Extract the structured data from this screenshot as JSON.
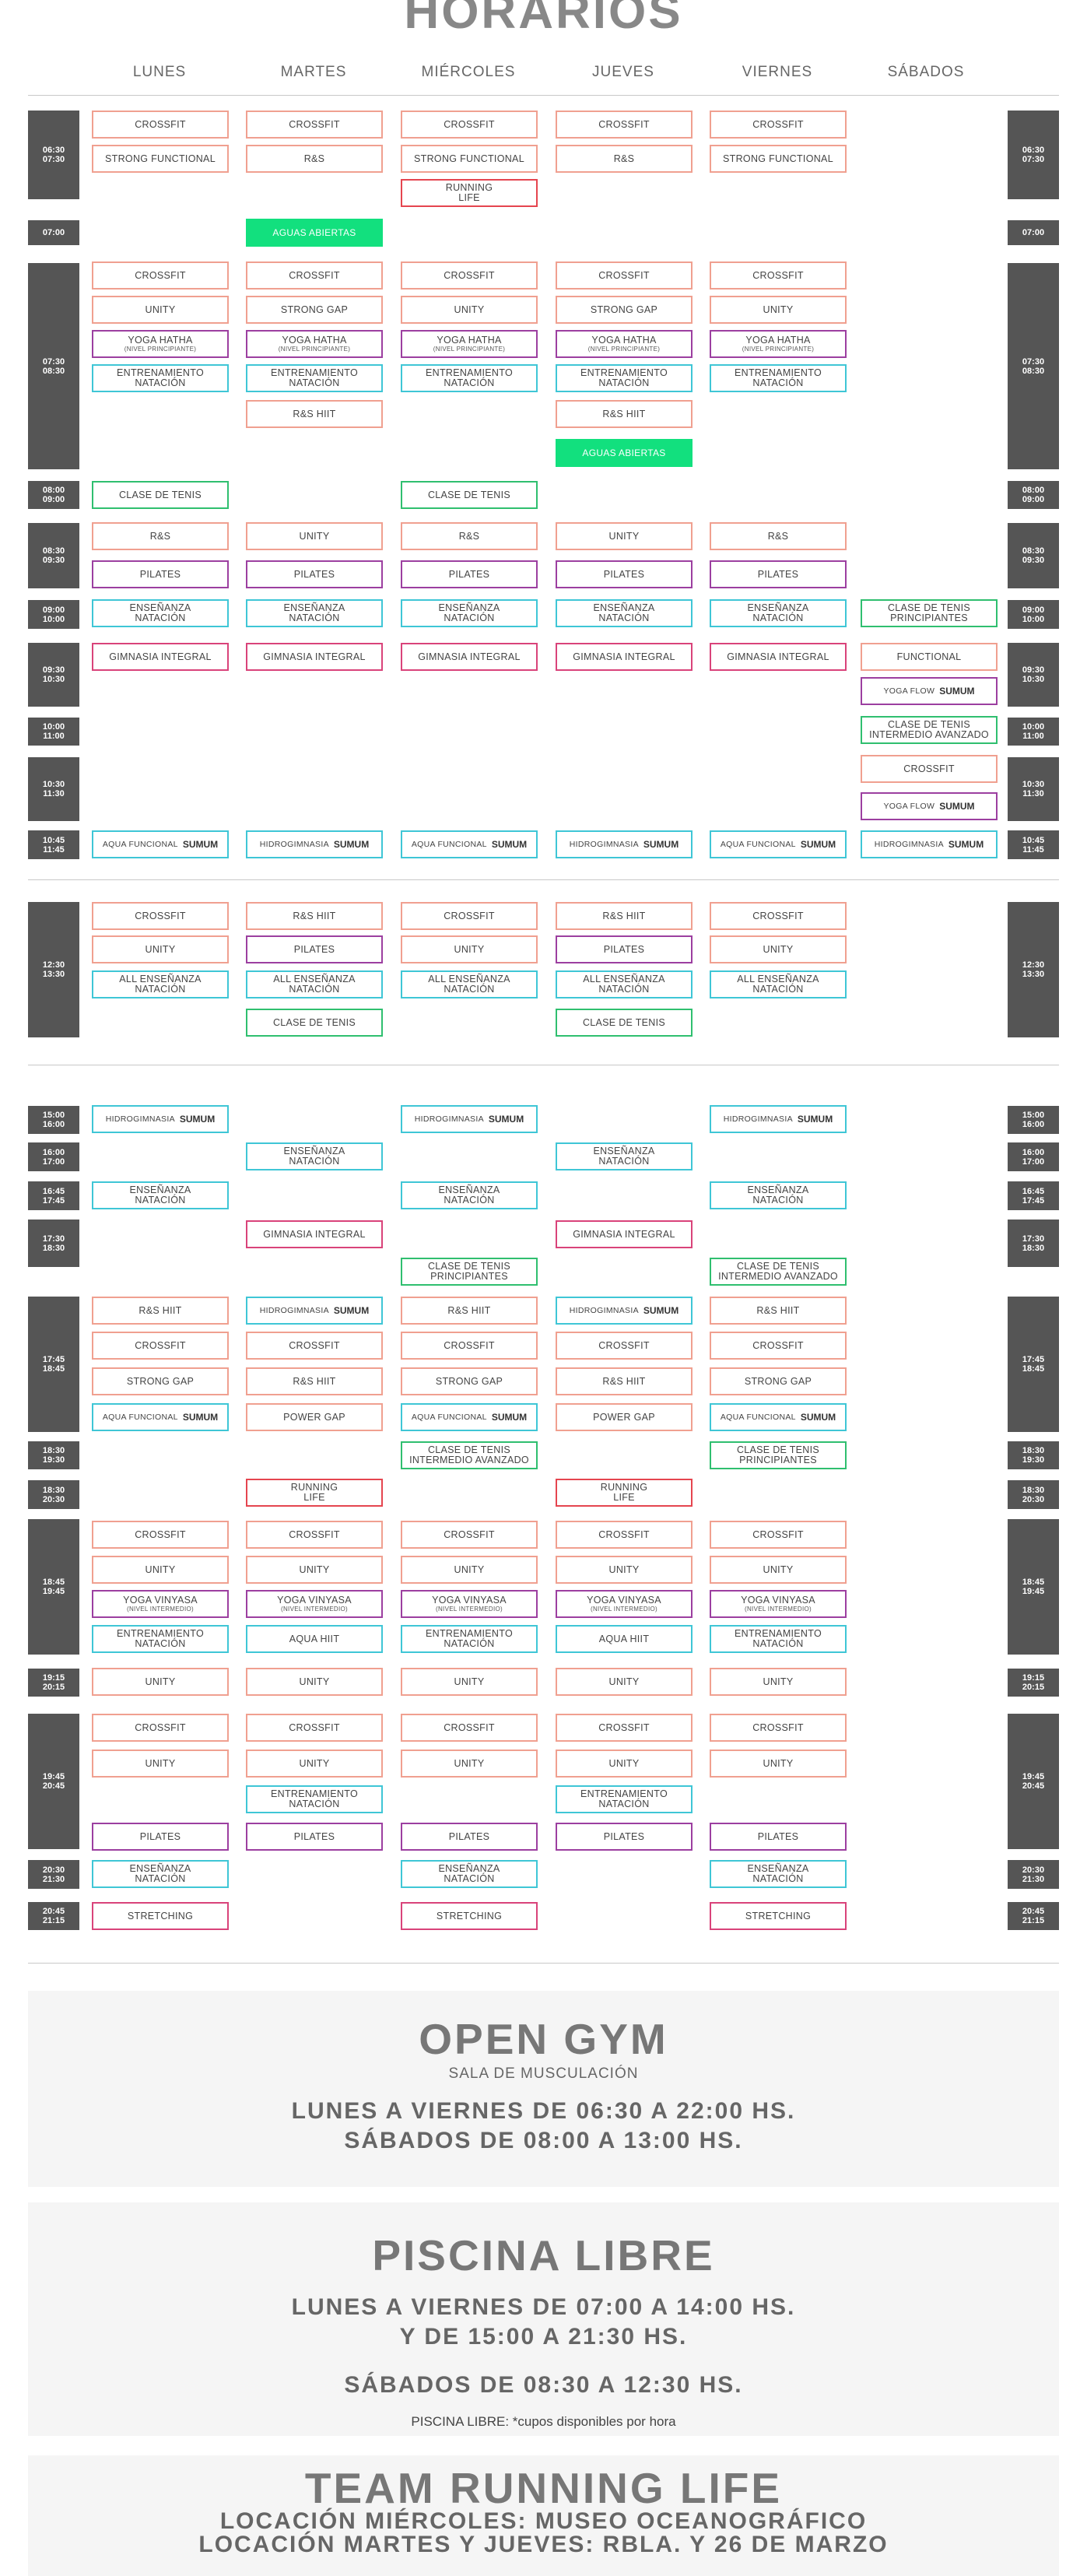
{
  "title": "HORARIOS",
  "days": [
    "LUNES",
    "MARTES",
    "MIÉRCOLES",
    "JUEVES",
    "VIERNES",
    "SÁBADOS"
  ],
  "times": [
    "06:30\n07:30",
    "07:00",
    "07:30\n08:30",
    "08:00\n09:00",
    "08:30\n09:30",
    "09:00\n10:00",
    "09:30\n10:30",
    "10:00\n11:00",
    "10:30\n11:30",
    "10:45\n11:45",
    "12:30\n13:30",
    "15:00\n16:00",
    "16:00\n17:00",
    "16:45\n17:45",
    "17:30\n18:30",
    "17:45\n18:45",
    "18:30\n19:30",
    "18:30\n20:30",
    "18:45\n19:45",
    "19:15\n20:15",
    "19:45\n20:45",
    "20:30\n21:30",
    "20:45\n21:15"
  ],
  "classes": [
    [
      "CROSSFIT",
      ""
    ],
    [
      "STRONG FUNCTIONAL",
      ""
    ],
    [
      "R&S",
      ""
    ],
    [
      "RUNNING\nLIFE",
      ""
    ],
    [
      "AGUAS ABIERTAS",
      ""
    ],
    [
      "UNITY",
      ""
    ],
    [
      "STRONG GAP",
      ""
    ],
    [
      "YOGA HATHA",
      "(NIVEL PRINCIPIANTE)"
    ],
    [
      "ENTRENAMIENTO\nNATACIÓN",
      ""
    ],
    [
      "R&S HIIT",
      ""
    ],
    [
      "CLASE DE TENIS",
      ""
    ],
    [
      "PILATES",
      ""
    ],
    [
      "ENSEÑANZA\nNATACIÓN",
      ""
    ],
    [
      "CLASE DE TENIS\nPRINCIPIANTES",
      ""
    ],
    [
      "GIMNASIA INTEGRAL",
      ""
    ],
    [
      "FUNCTIONAL",
      ""
    ],
    [
      "YOGA FLOW",
      ""
    ],
    [
      "CLASE DE TENIS\nINTERMEDIO AVANZADO",
      ""
    ],
    [
      "AQUA FUNCIONAL",
      ""
    ],
    [
      "HIDROGIMNASIA",
      ""
    ],
    [
      "ALL ENSEÑANZA\nNATACIÓN",
      ""
    ],
    [
      "POWER GAP",
      ""
    ],
    [
      "YOGA VINYASA",
      "(NIVEL INTERMEDIO)"
    ],
    [
      "AQUA HIIT",
      ""
    ],
    [
      "STRETCHING",
      ""
    ]
  ],
  "logo_text": "SUMUM",
  "colors": {
    "orange": "#f0a090",
    "purple": "#9c3fa0",
    "cyan": "#3fc6d6",
    "green": "#2fbf6f",
    "red": "#e5454f",
    "pink": "#d9437a",
    "open_water": "#12e07e",
    "time_block": "#555555"
  },
  "open_gym": {
    "title": "OPEN GYM",
    "subtitle": "SALA DE MUSCULACIÓN",
    "line1": "LUNES A VIERNES DE 06:30 A 22:00 HS.",
    "line2": "SÁBADOS DE 08:00 A 13:00 HS."
  },
  "piscina": {
    "title": "PISCINA LIBRE",
    "line1": "LUNES A VIERNES DE 07:00 A 14:00 HS.",
    "line2": "Y DE 15:00 A 21:30 HS.",
    "line3": "SÁBADOS DE 08:30 A 12:30 HS.",
    "note": "PISCINA LIBRE: *cupos disponibles por hora"
  },
  "running": {
    "title": "TEAM RUNNING LIFE",
    "line1": "LOCACIÓN MIÉRCOLES: MUSEO OCEANOGRÁFICO",
    "line2": "LOCACIÓN MARTES Y JUEVES: RBLA. Y 26 DE MARZO"
  }
}
